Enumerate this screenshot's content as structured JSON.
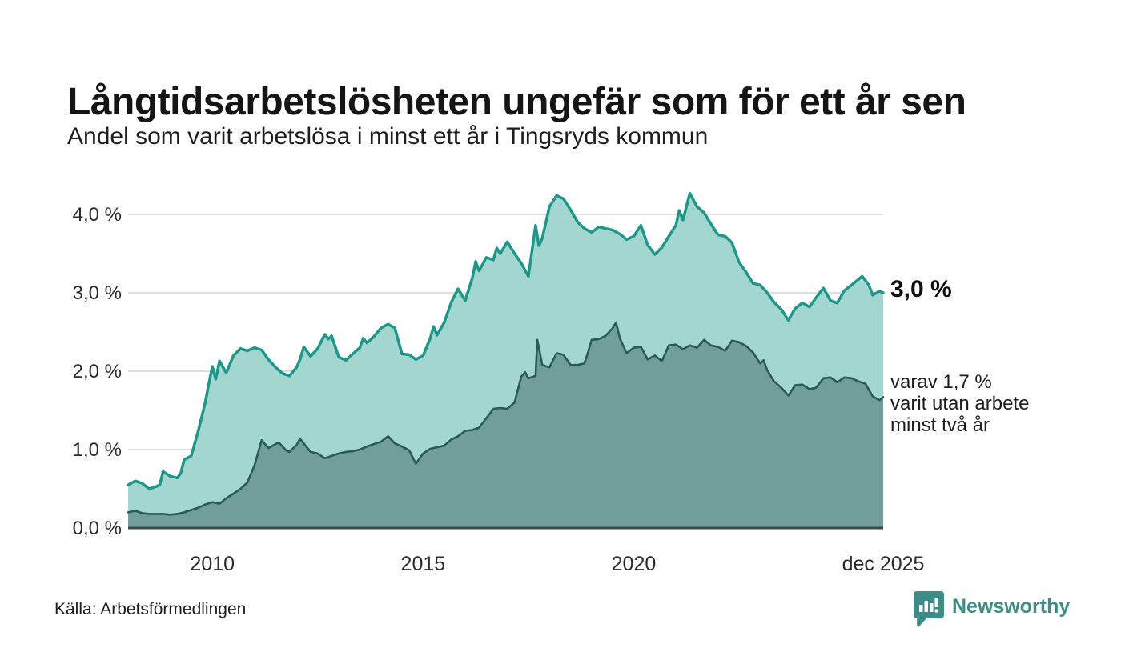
{
  "header": {
    "title": "Långtidsarbetslösheten ungefär som för ett år sen",
    "subtitle": "Andel som varit arbetslösa i minst ett år i Tingsryds kommun"
  },
  "annotations": {
    "value_main": "3,0 %",
    "secondary_lines": [
      "varav 1,7 %",
      "varit utan arbete",
      "minst två år"
    ]
  },
  "footer": {
    "source": "Källa: Arbetsförmedlingen",
    "brand": "Newsworthy",
    "logo_icon": "speech-bubble-bar-chart-icon"
  },
  "colors": {
    "line_one_year": "#1b9889",
    "fill_one_year": "#9ed4cc",
    "line_two_years": "#2a5a55",
    "fill_two_years": "#6f9b96",
    "gridline": "#dedede",
    "baseline": "#3c4a4d",
    "brand_teal": "#3b8d88",
    "text_dark": "#151515"
  },
  "chart_data": {
    "type": "area",
    "title": "Långtidsarbetslösheten ungefär som för ett år sen",
    "subtitle": "Andel som varit arbetslösa i minst ett år i Tingsryds kommun",
    "xlabel": "",
    "ylabel": "",
    "grid": true,
    "legend_position": "right-annotations",
    "x_axis": {
      "range": [
        2008.0,
        2025.92
      ],
      "ticks": [
        {
          "year": 2010,
          "label": "2010"
        },
        {
          "year": 2015,
          "label": "2015"
        },
        {
          "year": 2020,
          "label": "2020"
        },
        {
          "year": 2025.92,
          "label": "dec 2025"
        }
      ]
    },
    "y_axis": {
      "range": [
        0,
        4.4
      ],
      "ticks": [
        {
          "value": 0,
          "label": "0,0 %"
        },
        {
          "value": 1,
          "label": "1,0 %"
        },
        {
          "value": 2,
          "label": "2,0 %"
        },
        {
          "value": 3,
          "label": "3,0 %"
        },
        {
          "value": 4,
          "label": "4,0 %"
        }
      ],
      "gridlines": [
        1,
        2,
        3,
        4
      ]
    },
    "series": [
      {
        "name": "Andel som varit arbetslösa minst ett år",
        "end_label": "3,0 %",
        "end_value": 3.0,
        "line_color": "#1b9889",
        "fill_color": "#9ed4cc",
        "points": [
          [
            2008.0,
            0.55
          ],
          [
            2008.17,
            0.6
          ],
          [
            2008.33,
            0.57
          ],
          [
            2008.5,
            0.5
          ],
          [
            2008.67,
            0.53
          ],
          [
            2008.75,
            0.55
          ],
          [
            2008.83,
            0.72
          ],
          [
            2009.0,
            0.66
          ],
          [
            2009.17,
            0.64
          ],
          [
            2009.25,
            0.7
          ],
          [
            2009.33,
            0.87
          ],
          [
            2009.5,
            0.92
          ],
          [
            2009.67,
            1.25
          ],
          [
            2009.83,
            1.6
          ],
          [
            2009.92,
            1.85
          ],
          [
            2010.0,
            2.06
          ],
          [
            2010.08,
            1.9
          ],
          [
            2010.17,
            2.13
          ],
          [
            2010.33,
            1.98
          ],
          [
            2010.5,
            2.2
          ],
          [
            2010.67,
            2.29
          ],
          [
            2010.83,
            2.26
          ],
          [
            2011.0,
            2.3
          ],
          [
            2011.17,
            2.27
          ],
          [
            2011.33,
            2.15
          ],
          [
            2011.5,
            2.05
          ],
          [
            2011.67,
            1.97
          ],
          [
            2011.83,
            1.94
          ],
          [
            2012.0,
            2.05
          ],
          [
            2012.08,
            2.15
          ],
          [
            2012.17,
            2.31
          ],
          [
            2012.33,
            2.19
          ],
          [
            2012.5,
            2.29
          ],
          [
            2012.67,
            2.47
          ],
          [
            2012.75,
            2.41
          ],
          [
            2012.83,
            2.45
          ],
          [
            2013.0,
            2.18
          ],
          [
            2013.17,
            2.14
          ],
          [
            2013.33,
            2.22
          ],
          [
            2013.5,
            2.3
          ],
          [
            2013.58,
            2.42
          ],
          [
            2013.67,
            2.36
          ],
          [
            2013.83,
            2.44
          ],
          [
            2014.0,
            2.55
          ],
          [
            2014.17,
            2.6
          ],
          [
            2014.33,
            2.55
          ],
          [
            2014.5,
            2.22
          ],
          [
            2014.67,
            2.21
          ],
          [
            2014.83,
            2.15
          ],
          [
            2015.0,
            2.2
          ],
          [
            2015.17,
            2.42
          ],
          [
            2015.25,
            2.57
          ],
          [
            2015.33,
            2.46
          ],
          [
            2015.5,
            2.62
          ],
          [
            2015.67,
            2.88
          ],
          [
            2015.83,
            3.05
          ],
          [
            2016.0,
            2.9
          ],
          [
            2016.17,
            3.19
          ],
          [
            2016.25,
            3.4
          ],
          [
            2016.33,
            3.28
          ],
          [
            2016.5,
            3.45
          ],
          [
            2016.67,
            3.42
          ],
          [
            2016.75,
            3.57
          ],
          [
            2016.83,
            3.5
          ],
          [
            2017.0,
            3.65
          ],
          [
            2017.17,
            3.5
          ],
          [
            2017.33,
            3.38
          ],
          [
            2017.5,
            3.21
          ],
          [
            2017.67,
            3.86
          ],
          [
            2017.75,
            3.6
          ],
          [
            2017.83,
            3.7
          ],
          [
            2018.0,
            4.1
          ],
          [
            2018.17,
            4.24
          ],
          [
            2018.33,
            4.2
          ],
          [
            2018.5,
            4.06
          ],
          [
            2018.67,
            3.9
          ],
          [
            2018.83,
            3.82
          ],
          [
            2019.0,
            3.77
          ],
          [
            2019.17,
            3.84
          ],
          [
            2019.33,
            3.82
          ],
          [
            2019.5,
            3.8
          ],
          [
            2019.67,
            3.75
          ],
          [
            2019.83,
            3.68
          ],
          [
            2020.0,
            3.72
          ],
          [
            2020.17,
            3.86
          ],
          [
            2020.33,
            3.61
          ],
          [
            2020.5,
            3.49
          ],
          [
            2020.67,
            3.58
          ],
          [
            2020.83,
            3.72
          ],
          [
            2021.0,
            3.86
          ],
          [
            2021.08,
            4.05
          ],
          [
            2021.17,
            3.93
          ],
          [
            2021.33,
            4.27
          ],
          [
            2021.5,
            4.1
          ],
          [
            2021.67,
            4.02
          ],
          [
            2021.83,
            3.88
          ],
          [
            2022.0,
            3.74
          ],
          [
            2022.17,
            3.72
          ],
          [
            2022.33,
            3.64
          ],
          [
            2022.5,
            3.39
          ],
          [
            2022.67,
            3.26
          ],
          [
            2022.83,
            3.12
          ],
          [
            2023.0,
            3.1
          ],
          [
            2023.17,
            3.0
          ],
          [
            2023.33,
            2.88
          ],
          [
            2023.5,
            2.79
          ],
          [
            2023.67,
            2.65
          ],
          [
            2023.83,
            2.8
          ],
          [
            2024.0,
            2.87
          ],
          [
            2024.17,
            2.82
          ],
          [
            2024.33,
            2.94
          ],
          [
            2024.5,
            3.06
          ],
          [
            2024.67,
            2.9
          ],
          [
            2024.83,
            2.87
          ],
          [
            2025.0,
            3.03
          ],
          [
            2025.17,
            3.1
          ],
          [
            2025.33,
            3.17
          ],
          [
            2025.42,
            3.21
          ],
          [
            2025.58,
            3.1
          ],
          [
            2025.67,
            2.97
          ],
          [
            2025.83,
            3.02
          ],
          [
            2025.92,
            3.0
          ]
        ]
      },
      {
        "name": "varav arbetslösa minst två år",
        "end_label": "varav 1,7 % varit utan arbete minst två år",
        "end_value": 1.7,
        "line_color": "#2a5a55",
        "fill_color": "#6f9b96",
        "points": [
          [
            2008.0,
            0.2
          ],
          [
            2008.17,
            0.22
          ],
          [
            2008.33,
            0.19
          ],
          [
            2008.5,
            0.18
          ],
          [
            2008.67,
            0.18
          ],
          [
            2008.83,
            0.18
          ],
          [
            2009.0,
            0.17
          ],
          [
            2009.17,
            0.18
          ],
          [
            2009.33,
            0.2
          ],
          [
            2009.5,
            0.23
          ],
          [
            2009.67,
            0.26
          ],
          [
            2009.83,
            0.3
          ],
          [
            2010.0,
            0.33
          ],
          [
            2010.17,
            0.31
          ],
          [
            2010.33,
            0.38
          ],
          [
            2010.5,
            0.44
          ],
          [
            2010.67,
            0.5
          ],
          [
            2010.83,
            0.58
          ],
          [
            2011.0,
            0.8
          ],
          [
            2011.17,
            1.12
          ],
          [
            2011.33,
            1.02
          ],
          [
            2011.5,
            1.07
          ],
          [
            2011.58,
            1.09
          ],
          [
            2011.75,
            0.99
          ],
          [
            2011.83,
            0.97
          ],
          [
            2012.0,
            1.06
          ],
          [
            2012.08,
            1.14
          ],
          [
            2012.33,
            0.97
          ],
          [
            2012.5,
            0.95
          ],
          [
            2012.67,
            0.89
          ],
          [
            2012.83,
            0.92
          ],
          [
            2013.0,
            0.95
          ],
          [
            2013.17,
            0.97
          ],
          [
            2013.33,
            0.98
          ],
          [
            2013.5,
            1.0
          ],
          [
            2013.67,
            1.04
          ],
          [
            2013.83,
            1.07
          ],
          [
            2014.0,
            1.1
          ],
          [
            2014.17,
            1.17
          ],
          [
            2014.33,
            1.08
          ],
          [
            2014.5,
            1.04
          ],
          [
            2014.67,
            0.99
          ],
          [
            2014.83,
            0.82
          ],
          [
            2015.0,
            0.95
          ],
          [
            2015.17,
            1.01
          ],
          [
            2015.33,
            1.03
          ],
          [
            2015.5,
            1.05
          ],
          [
            2015.67,
            1.13
          ],
          [
            2015.83,
            1.17
          ],
          [
            2016.0,
            1.24
          ],
          [
            2016.17,
            1.25
          ],
          [
            2016.33,
            1.28
          ],
          [
            2016.5,
            1.4
          ],
          [
            2016.67,
            1.52
          ],
          [
            2016.83,
            1.53
          ],
          [
            2017.0,
            1.52
          ],
          [
            2017.17,
            1.6
          ],
          [
            2017.33,
            1.93
          ],
          [
            2017.42,
            1.99
          ],
          [
            2017.5,
            1.91
          ],
          [
            2017.67,
            1.94
          ],
          [
            2017.71,
            2.4
          ],
          [
            2017.83,
            2.08
          ],
          [
            2018.0,
            2.05
          ],
          [
            2018.17,
            2.23
          ],
          [
            2018.33,
            2.21
          ],
          [
            2018.5,
            2.08
          ],
          [
            2018.67,
            2.08
          ],
          [
            2018.83,
            2.1
          ],
          [
            2018.92,
            2.25
          ],
          [
            2019.0,
            2.4
          ],
          [
            2019.17,
            2.41
          ],
          [
            2019.33,
            2.45
          ],
          [
            2019.5,
            2.55
          ],
          [
            2019.58,
            2.62
          ],
          [
            2019.67,
            2.42
          ],
          [
            2019.83,
            2.23
          ],
          [
            2020.0,
            2.3
          ],
          [
            2020.17,
            2.31
          ],
          [
            2020.33,
            2.15
          ],
          [
            2020.5,
            2.2
          ],
          [
            2020.67,
            2.13
          ],
          [
            2020.83,
            2.33
          ],
          [
            2021.0,
            2.34
          ],
          [
            2021.17,
            2.28
          ],
          [
            2021.33,
            2.33
          ],
          [
            2021.5,
            2.3
          ],
          [
            2021.67,
            2.4
          ],
          [
            2021.83,
            2.33
          ],
          [
            2022.0,
            2.31
          ],
          [
            2022.17,
            2.26
          ],
          [
            2022.33,
            2.39
          ],
          [
            2022.5,
            2.37
          ],
          [
            2022.67,
            2.32
          ],
          [
            2022.83,
            2.24
          ],
          [
            2023.0,
            2.1
          ],
          [
            2023.08,
            2.14
          ],
          [
            2023.17,
            2.01
          ],
          [
            2023.33,
            1.87
          ],
          [
            2023.5,
            1.79
          ],
          [
            2023.67,
            1.69
          ],
          [
            2023.83,
            1.82
          ],
          [
            2024.0,
            1.83
          ],
          [
            2024.17,
            1.77
          ],
          [
            2024.33,
            1.79
          ],
          [
            2024.5,
            1.91
          ],
          [
            2024.67,
            1.92
          ],
          [
            2024.83,
            1.86
          ],
          [
            2025.0,
            1.92
          ],
          [
            2025.17,
            1.91
          ],
          [
            2025.33,
            1.87
          ],
          [
            2025.5,
            1.84
          ],
          [
            2025.67,
            1.68
          ],
          [
            2025.83,
            1.63
          ],
          [
            2025.92,
            1.67
          ]
        ]
      }
    ]
  }
}
